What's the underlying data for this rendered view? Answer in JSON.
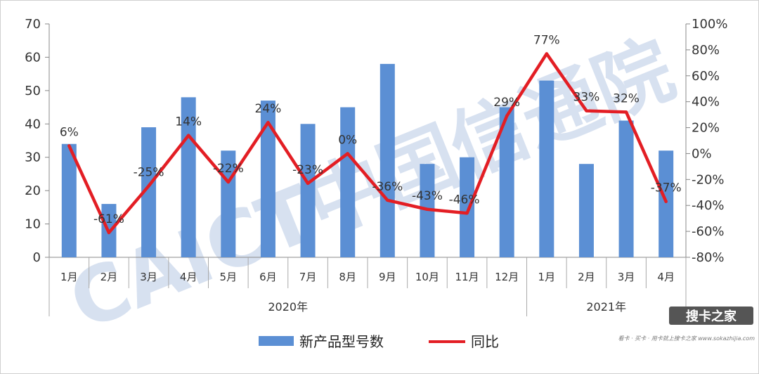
{
  "chart_data": {
    "type": "bar+line",
    "categories": [
      "1月",
      "2月",
      "3月",
      "4月",
      "5月",
      "6月",
      "7月",
      "8月",
      "9月",
      "10月",
      "11月",
      "12月",
      "1月",
      "2月",
      "3月",
      "4月"
    ],
    "groups": [
      {
        "label": "2020年",
        "count": 12
      },
      {
        "label": "2021年",
        "count": 4
      }
    ],
    "series": [
      {
        "name": "新产品型号数",
        "type": "bar",
        "axis": "left",
        "color": "#5B8FD4",
        "values": [
          34,
          16,
          39,
          48,
          32,
          47,
          40,
          45,
          58,
          28,
          30,
          45,
          53,
          28,
          41,
          32
        ]
      },
      {
        "name": "同比",
        "type": "line",
        "axis": "right",
        "color": "#E31E24",
        "values": [
          6,
          -61,
          -25,
          14,
          -22,
          24,
          -23,
          0,
          -36,
          -43,
          -46,
          29,
          77,
          33,
          32,
          -37
        ],
        "labels": [
          "6%",
          "-61%",
          "-25%",
          "14%",
          "-22%",
          "24%",
          "-23%",
          "0%",
          "-36%",
          "-43%",
          "-46%",
          "29%",
          "77%",
          "33%",
          "32%",
          "-37%"
        ]
      }
    ],
    "y_left": {
      "min": 0,
      "max": 70,
      "step": 10,
      "ticks": [
        "0",
        "10",
        "20",
        "30",
        "40",
        "50",
        "60",
        "70"
      ]
    },
    "y_right": {
      "min": -80,
      "max": 100,
      "step": 20,
      "ticks": [
        "-80%",
        "-60%",
        "-40%",
        "-20%",
        "0%",
        "20%",
        "40%",
        "60%",
        "80%",
        "100%"
      ]
    },
    "legend": {
      "position": "bottom",
      "items": [
        "新产品型号数",
        "同比"
      ]
    },
    "grid": false
  },
  "watermark": {
    "text": "CAICT中国信通院"
  },
  "corner_logo": {
    "title": "搜卡之家",
    "subtitle": "看卡 · 买卡 · 用卡就上搜卡之家 www.sokazhijia.com"
  }
}
